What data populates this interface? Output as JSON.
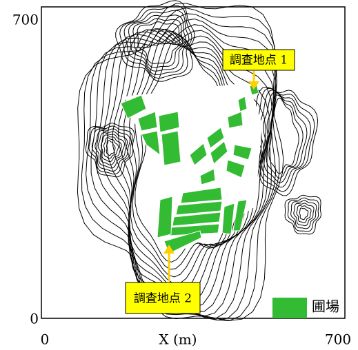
{
  "chart_data": {
    "type": "map",
    "xlabel": "X (m)",
    "xlim": [
      0,
      700
    ],
    "ylim": [
      0,
      700
    ],
    "xticks": [
      0,
      700
    ],
    "yticks": [
      0,
      700
    ],
    "annotations": [
      "調査地点 1",
      "調査地点 2"
    ],
    "series": [
      {
        "name": "圃場",
        "color": "#33bb33"
      }
    ],
    "legend": "lower right"
  }
}
